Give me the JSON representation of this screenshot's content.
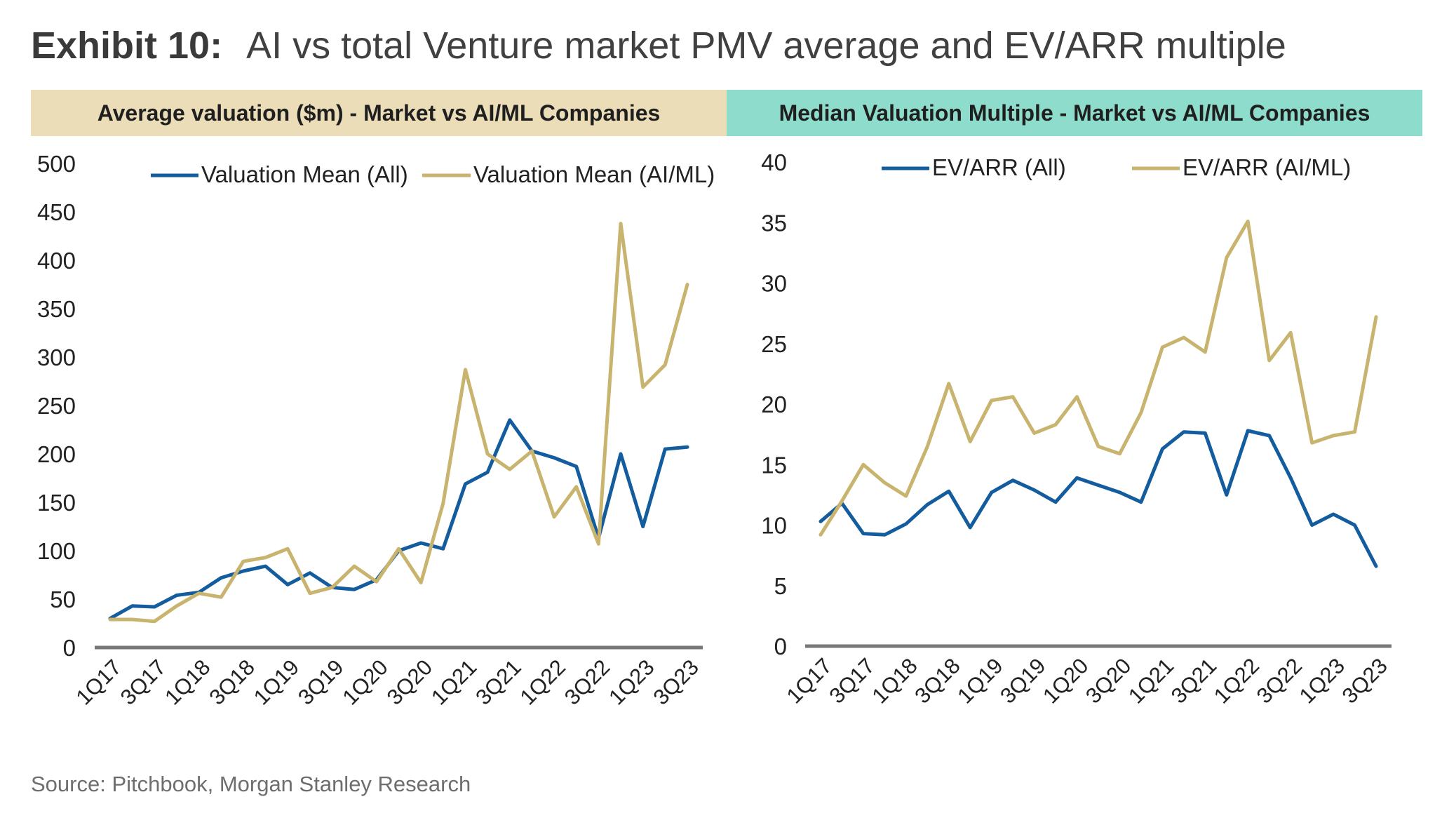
{
  "exhibit": {
    "label": "Exhibit 10:",
    "title": "AI vs total Venture market PMV average and EV/ARR multiple"
  },
  "source": "Source: Pitchbook, Morgan Stanley Research",
  "colors": {
    "series_all": "#135C9E",
    "series_ai": "#C8B46E",
    "left_header_bg": "#EBDDB7",
    "right_header_bg": "#8EDCCB",
    "axis": "#777777"
  },
  "chart_data": [
    {
      "type": "line",
      "title": "Average valuation ($m) - Market vs AI/ML Companies",
      "xlabel": "",
      "ylabel": "",
      "ylim": [
        0,
        500
      ],
      "yticks": [
        0,
        50,
        100,
        150,
        200,
        250,
        300,
        350,
        400,
        450,
        500
      ],
      "grid": false,
      "legend": "top",
      "x": [
        "1Q17",
        "2Q17",
        "3Q17",
        "4Q17",
        "1Q18",
        "2Q18",
        "3Q18",
        "4Q18",
        "1Q19",
        "2Q19",
        "3Q19",
        "4Q19",
        "1Q20",
        "2Q20",
        "3Q20",
        "4Q20",
        "1Q21",
        "2Q21",
        "3Q21",
        "4Q21",
        "1Q22",
        "2Q22",
        "3Q22",
        "4Q22",
        "1Q23",
        "2Q23",
        "3Q23"
      ],
      "tick_labels": [
        "1Q17",
        "3Q17",
        "1Q18",
        "3Q18",
        "1Q19",
        "3Q19",
        "1Q20",
        "3Q20",
        "1Q21",
        "3Q21",
        "1Q22",
        "3Q22",
        "1Q23",
        "3Q23"
      ],
      "series": [
        {
          "name": "Valuation Mean (All)",
          "color_key": "series_all",
          "values": [
            30,
            43,
            42,
            54,
            57,
            72,
            79,
            84,
            65,
            77,
            62,
            60,
            70,
            100,
            108,
            102,
            169,
            181,
            235,
            203,
            196,
            187,
            113,
            200,
            125,
            205,
            207
          ]
        },
        {
          "name": "Valuation Mean (AI/ML)",
          "color_key": "series_ai",
          "values": [
            29,
            29,
            27,
            43,
            56,
            52,
            89,
            93,
            102,
            56,
            62,
            84,
            68,
            102,
            67,
            149,
            287,
            200,
            184,
            203,
            135,
            166,
            107,
            438,
            269,
            292,
            375
          ]
        }
      ]
    },
    {
      "type": "line",
      "title": "Median Valuation Multiple -  Market vs AI/ML Companies",
      "xlabel": "",
      "ylabel": "",
      "ylim": [
        0,
        40
      ],
      "yticks": [
        0,
        5,
        10,
        15,
        20,
        25,
        30,
        35,
        40
      ],
      "grid": false,
      "legend": "top",
      "x": [
        "1Q17",
        "2Q17",
        "3Q17",
        "4Q17",
        "1Q18",
        "2Q18",
        "3Q18",
        "4Q18",
        "1Q19",
        "2Q19",
        "3Q19",
        "4Q19",
        "1Q20",
        "2Q20",
        "3Q20",
        "4Q20",
        "1Q21",
        "2Q21",
        "3Q21",
        "4Q21",
        "1Q22",
        "2Q22",
        "3Q22",
        "4Q22",
        "1Q23",
        "2Q23",
        "3Q23"
      ],
      "tick_labels": [
        "1Q17",
        "3Q17",
        "1Q18",
        "3Q18",
        "1Q19",
        "3Q19",
        "1Q20",
        "3Q20",
        "1Q21",
        "3Q21",
        "1Q22",
        "3Q22",
        "1Q23",
        "3Q23"
      ],
      "series": [
        {
          "name": "EV/ARR (All)",
          "color_key": "series_all",
          "values": [
            10.3,
            11.8,
            9.3,
            9.2,
            10.1,
            11.7,
            12.8,
            9.8,
            12.7,
            13.7,
            12.9,
            11.9,
            13.9,
            13.3,
            12.7,
            11.9,
            16.3,
            17.7,
            17.6,
            12.5,
            17.8,
            17.4,
            13.9,
            10.0,
            10.9,
            10.0,
            6.6
          ]
        },
        {
          "name": "EV/ARR (AI/ML)",
          "color_key": "series_ai",
          "values": [
            9.2,
            12.0,
            15.0,
            13.5,
            12.4,
            16.5,
            21.7,
            16.9,
            20.3,
            20.6,
            17.6,
            18.3,
            20.6,
            16.5,
            15.9,
            19.3,
            24.7,
            25.5,
            24.3,
            32.1,
            35.1,
            23.6,
            25.9,
            16.8,
            17.4,
            17.7,
            27.2
          ]
        }
      ]
    }
  ]
}
